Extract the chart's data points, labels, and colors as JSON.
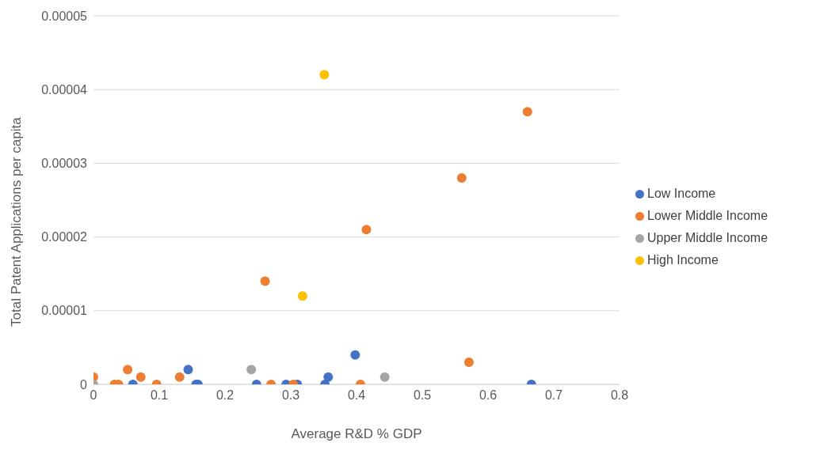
{
  "chart_data": {
    "type": "scatter",
    "xlabel": "Average R&D % GDP",
    "ylabel": "Total Patent Applications per capita",
    "xlim": [
      0,
      0.8
    ],
    "xticks": [
      0,
      0.1,
      0.2,
      0.3,
      0.4,
      0.5,
      0.6,
      0.7,
      0.8
    ],
    "ylim": [
      0,
      5e-05
    ],
    "yticks": [
      0,
      {
        "value": 1e-05,
        "label": "0.00001"
      },
      {
        "value": 2e-05,
        "label": "0.00002"
      },
      {
        "value": 3e-05,
        "label": "0.00003"
      },
      {
        "value": 4e-05,
        "label": "0.00004"
      },
      {
        "value": 5e-05,
        "label": "0.00005"
      }
    ],
    "grid": "y",
    "legend": "right",
    "marker": "circle",
    "series": [
      {
        "name": "Low Income",
        "color": "#4472c4",
        "x": [
          0.06,
          0.144,
          0.156,
          0.159,
          0.248,
          0.293,
          0.31,
          0.352,
          0.357,
          0.398,
          0.666
        ],
        "values": [
          0,
          2e-06,
          0,
          0,
          0,
          0,
          0,
          0,
          1e-06,
          4e-06,
          0
        ]
      },
      {
        "name": "Lower Middle Income",
        "color": "#ed7d31",
        "x": [
          0,
          0.032,
          0.038,
          0.052,
          0.072,
          0.096,
          0.131,
          0.261,
          0.27,
          0.304,
          0.406,
          0.415,
          0.56,
          0.571,
          0.66
        ],
        "values": [
          1e-06,
          0,
          0,
          2e-06,
          1e-06,
          0,
          1e-06,
          1.4e-05,
          0,
          0,
          0,
          2.1e-05,
          2.8e-05,
          3e-06,
          3.7e-05
        ]
      },
      {
        "name": "Upper Middle Income",
        "color": "#a5a5a5",
        "x": [
          0,
          0.24,
          0.443
        ],
        "values": [
          0,
          2e-06,
          1e-06
        ]
      },
      {
        "name": "High Income",
        "color": "#ffc000",
        "x": [
          0.351,
          0.318
        ],
        "values": [
          4.2e-05,
          1.2e-05
        ]
      }
    ]
  }
}
